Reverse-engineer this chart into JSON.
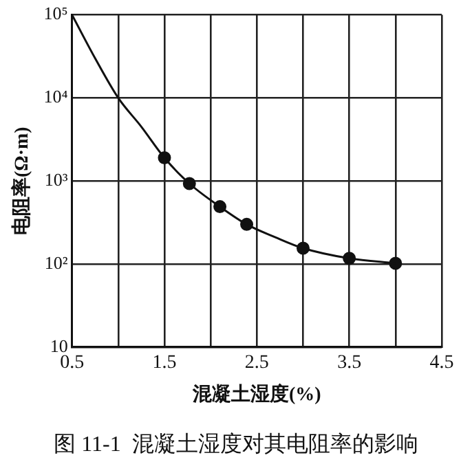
{
  "chart_data": {
    "type": "line",
    "xlabel": "混凝土湿度(%)",
    "ylabel": "电阻率(Ω·m)",
    "log": "y",
    "grid": true,
    "legend": false,
    "xlim": [
      0.5,
      4.5
    ],
    "xticks": [
      0.5,
      {
        "value": 1,
        "label": null
      },
      1.5,
      {
        "value": 2,
        "label": null
      },
      2.5,
      {
        "value": 3,
        "label": null
      },
      3.5,
      {
        "value": 4,
        "label": null
      },
      4.5
    ],
    "ylim": [
      10,
      100000
    ],
    "yticks": [
      10,
      {
        "value": 100,
        "label": "10²"
      },
      {
        "value": 1000,
        "label": "10³"
      },
      {
        "value": 10000,
        "label": "10⁴"
      },
      {
        "value": 100000,
        "label": "10⁵"
      }
    ],
    "series": [
      {
        "marker": "none",
        "line_style": "solid",
        "color": "#111111",
        "x": [
          0.5,
          0.75,
          1.0,
          1.25,
          1.5,
          1.77,
          2.1,
          2.39,
          2.7,
          3.0,
          3.5,
          4.0
        ],
        "values": [
          100000,
          30000,
          10000,
          4500,
          1900,
          930,
          490,
          300,
          210,
          155,
          117,
          102
        ]
      },
      {
        "type": "scatter",
        "marker": "circle",
        "color": "#111111",
        "x": [
          1.5,
          1.77,
          2.1,
          2.39,
          3.0,
          3.5,
          4.0
        ],
        "values": [
          1900,
          930,
          490,
          300,
          155,
          117,
          102
        ]
      }
    ],
    "annotations": [
      "图 11-1  混凝土湿度对其电阻率的影响"
    ]
  }
}
